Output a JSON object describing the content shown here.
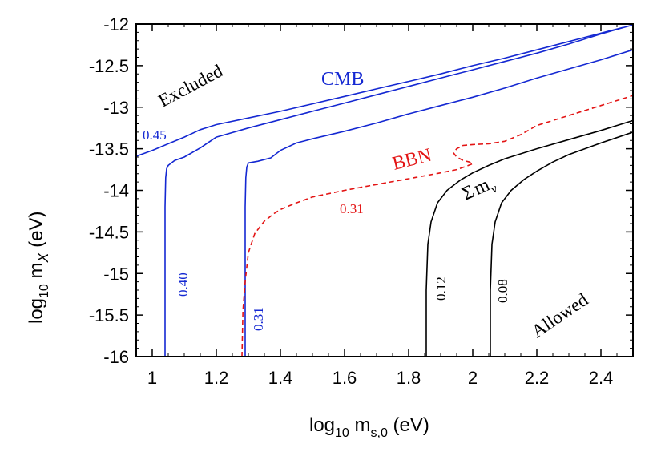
{
  "chart_data": {
    "type": "line",
    "xlabel": {
      "main": "log",
      "sub": "10",
      "rest": " m",
      "sub2": "s,0",
      "units": " (eV)"
    },
    "ylabel": {
      "main": "log",
      "sub": "10",
      "rest": " m",
      "sub2": "X",
      "units": " (eV)"
    },
    "xlim": [
      0.95,
      2.5
    ],
    "ylim": [
      -16,
      -12
    ],
    "xticks": [
      1,
      1.2,
      1.4,
      1.6,
      1.8,
      2,
      2.2,
      2.4
    ],
    "xtick_labels": [
      "1",
      "1.2",
      "1.4",
      "1.6",
      "1.8",
      "2",
      "2.2",
      "2.4"
    ],
    "yticks": [
      -12,
      -12.5,
      -13,
      -13.5,
      -14,
      -14.5,
      -15,
      -15.5,
      -16
    ],
    "ytick_labels": [
      "-12",
      "-12.5",
      "-13",
      "-13.5",
      "-14",
      "-14.5",
      "-15",
      "-15.5",
      "-16"
    ],
    "grid": false,
    "colors": {
      "cmb": "#1428d2",
      "bbn": "#e31414",
      "sum": "#000000"
    },
    "annotations": {
      "excluded": "Excluded",
      "allowed": "Allowed",
      "cmb": "CMB",
      "bbn": "BBN",
      "sum_symbol": "Σ",
      "sum_m": "m",
      "sum_sub": "ν"
    },
    "series": [
      {
        "name": "CMB 0.45",
        "group": "cmb",
        "label": "0.45",
        "x": [
          0.95,
          1.0,
          1.05,
          1.1,
          1.15,
          1.2,
          1.3,
          1.4,
          1.5,
          1.6,
          1.7,
          1.8,
          1.9,
          2.0,
          2.1,
          2.2,
          2.3,
          2.4,
          2.47
        ],
        "y": [
          -13.59,
          -13.52,
          -13.44,
          -13.36,
          -13.27,
          -13.21,
          -13.13,
          -13.05,
          -12.96,
          -12.87,
          -12.78,
          -12.69,
          -12.6,
          -12.5,
          -12.41,
          -12.31,
          -12.21,
          -12.11,
          -12.04
        ]
      },
      {
        "name": "CMB 0.40",
        "group": "cmb",
        "label": "0.40",
        "x": [
          1.04,
          1.04,
          1.042,
          1.045,
          1.05,
          1.07,
          1.1,
          1.15,
          1.2,
          1.3,
          1.4,
          1.5,
          1.6,
          1.7,
          1.8,
          1.9,
          2.0,
          2.1,
          2.2,
          2.3,
          2.4,
          2.5
        ],
        "y": [
          -16.0,
          -14.2,
          -13.85,
          -13.74,
          -13.7,
          -13.64,
          -13.6,
          -13.49,
          -13.36,
          -13.25,
          -13.15,
          -13.05,
          -12.95,
          -12.85,
          -12.75,
          -12.65,
          -12.55,
          -12.45,
          -12.35,
          -12.24,
          -12.12,
          -12.01
        ]
      },
      {
        "name": "CMB 0.31",
        "group": "cmb",
        "label": "0.31",
        "x": [
          1.29,
          1.29,
          1.292,
          1.295,
          1.3,
          1.33,
          1.37,
          1.4,
          1.45,
          1.5,
          1.6,
          1.7,
          1.8,
          1.9,
          2.0,
          2.1,
          2.2,
          2.3,
          2.4,
          2.5
        ],
        "y": [
          -16.0,
          -14.2,
          -13.85,
          -13.72,
          -13.67,
          -13.65,
          -13.61,
          -13.52,
          -13.43,
          -13.38,
          -13.29,
          -13.19,
          -13.08,
          -12.98,
          -12.88,
          -12.77,
          -12.65,
          -12.54,
          -12.43,
          -12.31
        ]
      },
      {
        "name": "BBN 0.31",
        "group": "bbn",
        "label": "0.31",
        "dashed": true,
        "x": [
          1.28,
          1.283,
          1.29,
          1.3,
          1.32,
          1.35,
          1.38,
          1.4,
          1.45,
          1.5,
          1.6,
          1.7,
          1.8,
          1.9,
          1.95,
          1.98,
          2.0,
          1.99,
          1.97,
          1.95,
          1.94,
          1.95,
          1.97,
          2.0,
          2.05,
          2.1,
          2.15,
          2.2,
          2.3,
          2.4,
          2.5
        ],
        "y": [
          -16.0,
          -15.45,
          -15.1,
          -14.75,
          -14.52,
          -14.37,
          -14.28,
          -14.23,
          -14.15,
          -14.08,
          -14.0,
          -13.93,
          -13.86,
          -13.79,
          -13.75,
          -13.71,
          -13.68,
          -13.66,
          -13.64,
          -13.6,
          -13.55,
          -13.5,
          -13.46,
          -13.45,
          -13.44,
          -13.41,
          -13.33,
          -13.22,
          -13.1,
          -12.98,
          -12.86
        ]
      },
      {
        "name": "Sum m_nu 0.12",
        "group": "sum",
        "label": "0.12",
        "x": [
          1.855,
          1.855,
          1.86,
          1.87,
          1.89,
          1.92,
          1.96,
          2.0,
          2.05,
          2.1,
          2.2,
          2.3,
          2.4,
          2.5
        ],
        "y": [
          -16.0,
          -15.2,
          -14.65,
          -14.38,
          -14.15,
          -14.0,
          -13.88,
          -13.79,
          -13.7,
          -13.62,
          -13.5,
          -13.39,
          -13.28,
          -13.16
        ]
      },
      {
        "name": "Sum m_nu 0.08",
        "group": "sum",
        "label": "0.08",
        "x": [
          2.055,
          2.055,
          2.06,
          2.07,
          2.09,
          2.12,
          2.16,
          2.2,
          2.25,
          2.3,
          2.4,
          2.5
        ],
        "y": [
          -16.0,
          -15.2,
          -14.65,
          -14.38,
          -14.15,
          -14.0,
          -13.87,
          -13.77,
          -13.66,
          -13.57,
          -13.43,
          -13.3
        ]
      }
    ]
  }
}
